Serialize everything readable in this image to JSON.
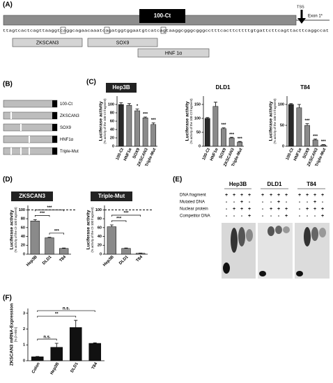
{
  "panel_labels": [
    "(A)",
    "(B)",
    "(C)",
    "(D)",
    "(E)",
    "(F)"
  ],
  "panel_a": {
    "fragment": "100-Ct",
    "tss": "TSS",
    "exon": "Exon 1*",
    "sequence": "ttagtcactcagttaaggtcaggcagaacaaatcagatggtggaatgtcatcagtaaggcgggcgggcctttcacttcttttgtgattcttcagttacttcaggccat",
    "sites": [
      "ZKSCAN3",
      "SOX9",
      "HNF 1α"
    ]
  },
  "panel_b": {
    "constructs": [
      "100-Ct",
      "ZKSCAN3",
      "SOX9",
      "HNF1α",
      "Triple-Mut"
    ]
  },
  "panel_e": {
    "groups": [
      "Hep3B",
      "DLD1",
      "T84"
    ],
    "rows": [
      {
        "label": "DNA fragment",
        "signs": [
          "+",
          "+",
          "+",
          "+",
          "+",
          "+",
          "+",
          "+",
          "+",
          "+",
          "+",
          "+"
        ]
      },
      {
        "label": "Mutated DNA",
        "signs": [
          "-",
          "-",
          "+",
          "-",
          "-",
          "-",
          "+",
          "-",
          "-",
          "-",
          "+",
          "-"
        ]
      },
      {
        "label": "Nuclear protein",
        "signs": [
          "-",
          "+",
          "+",
          "+",
          "-",
          "+",
          "+",
          "+",
          "-",
          "+",
          "+",
          "+"
        ]
      },
      {
        "label": "Competitor DNA",
        "signs": [
          "-",
          "-",
          "-",
          "+",
          "-",
          "-",
          "-",
          "+",
          "-",
          "-",
          "-",
          "+"
        ]
      }
    ]
  },
  "chart_data": [
    {
      "type": "bar",
      "title": "Hep3B",
      "title_box": true,
      "ylabel": [
        "Luciferase activity",
        "(% activity of the 100-Ct fragment)"
      ],
      "categories": [
        "100-Ct",
        "HNF1α",
        "SOX9",
        "ZKSCAN3",
        "Triple-Mut"
      ],
      "values": [
        100,
        98,
        85,
        68,
        52
      ],
      "errors": [
        4,
        4,
        4,
        2,
        4
      ],
      "markers": [
        null,
        null,
        "*",
        "***",
        "***"
      ],
      "colors": [
        "#2a2a2a",
        "#8a8a8a",
        "#8a8a8a",
        "#8a8a8a",
        "#8a8a8a"
      ],
      "ylim": [
        0,
        120
      ],
      "yticks": [
        0,
        20,
        40,
        60,
        80,
        100
      ]
    },
    {
      "type": "bar",
      "title": "DLD1",
      "title_box": false,
      "ylabel": [
        "Luciferase activity",
        "(% activity of the 100-Ct fragment)"
      ],
      "categories": [
        "100-Ct",
        "HNF1α",
        "SOX9",
        "ZKSCAN3",
        "Triple-Mut"
      ],
      "values": [
        100,
        143,
        63,
        30,
        15
      ],
      "errors": [
        3,
        15,
        3,
        2,
        2
      ],
      "markers": [
        null,
        null,
        "***",
        "***",
        "***"
      ],
      "colors": [
        "#2a2a2a",
        "#8a8a8a",
        "#8a8a8a",
        "#8a8a8a",
        "#8a8a8a"
      ],
      "ylim": [
        0,
        180
      ],
      "yticks": [
        0,
        50,
        100,
        150
      ]
    },
    {
      "type": "bar",
      "title": "T84",
      "title_box": false,
      "ylabel": [
        "Luciferase activity",
        "(% activity of the 100-Ct fragment)"
      ],
      "categories": [
        "100-Ct",
        "HNF1α",
        "SOX9",
        "ZKSCAN3",
        "Triple-Mut"
      ],
      "values": [
        100,
        92,
        50,
        15,
        3
      ],
      "errors": [
        2,
        8,
        4,
        2,
        1
      ],
      "markers": [
        null,
        null,
        "***",
        "***",
        "***"
      ],
      "colors": [
        "#2a2a2a",
        "#8a8a8a",
        "#8a8a8a",
        "#8a8a8a",
        "#8a8a8a"
      ],
      "ylim": [
        0,
        120
      ],
      "yticks": [
        0,
        50,
        100
      ]
    },
    {
      "type": "bar",
      "title": "ZKSCAN3",
      "title_box": true,
      "ylabel": [
        "Luciferase activity",
        "(% activity of the Ct-100 fragment)"
      ],
      "categories": [
        "Hep3B",
        "DLD1",
        "T84"
      ],
      "values": [
        75,
        37,
        13
      ],
      "errors": [
        3,
        1,
        1
      ],
      "colors": [
        "#8a8a8a",
        "#8a8a8a",
        "#8a8a8a"
      ],
      "reference_line": 100,
      "comparisons": [
        {
          "from": "DLD1",
          "to": "T84",
          "text": "***"
        },
        {
          "from": "Hep3B",
          "to": "DLD1",
          "text": "***"
        },
        {
          "from": "Hep3B",
          "to": "T84",
          "text": "***"
        }
      ],
      "ylim": [
        0,
        110
      ],
      "yticks": [
        0,
        20,
        40,
        60,
        80,
        100
      ]
    },
    {
      "type": "bar",
      "title": "Triple-Mut",
      "title_box": true,
      "ylabel": [
        "Luciferase activity",
        "(% activity of the Ct-100 fragment)"
      ],
      "categories": [
        "Hep3B",
        "DLD1",
        "T84"
      ],
      "values": [
        62,
        13,
        2
      ],
      "errors": [
        4,
        1,
        0.5
      ],
      "colors": [
        "#8a8a8a",
        "#8a8a8a",
        "#8a8a8a"
      ],
      "reference_line": 100,
      "comparisons": [
        {
          "from": "Hep3B",
          "to": "DLD1",
          "text": "***"
        },
        {
          "from": "Hep3B",
          "to": "T84",
          "text": "***"
        }
      ],
      "ylim": [
        0,
        110
      ],
      "yticks": [
        0,
        20,
        40,
        60,
        80,
        100
      ]
    },
    {
      "type": "bar",
      "ylabel": [
        "ZKSCAN3 mRNA-Expression",
        "[% β-Aktin]"
      ],
      "categories": [
        "Colon",
        "Hep3B",
        "DLD1",
        "T84"
      ],
      "values": [
        0.25,
        0.85,
        2.1,
        1.1
      ],
      "errors": [
        0.02,
        0.25,
        0.45,
        0.03
      ],
      "colors": [
        "#111111",
        "#111111",
        "#111111",
        "#111111"
      ],
      "comparisons": [
        {
          "from": "Colon",
          "to": "Hep3B",
          "text": "n.s."
        },
        {
          "from": "Colon",
          "to": "DLD1",
          "text": "**"
        },
        {
          "from": "Colon",
          "to": "T84",
          "text": "n.s."
        }
      ],
      "ylim": [
        0,
        3.3
      ],
      "yticks": [
        0,
        1,
        2,
        3
      ]
    }
  ]
}
